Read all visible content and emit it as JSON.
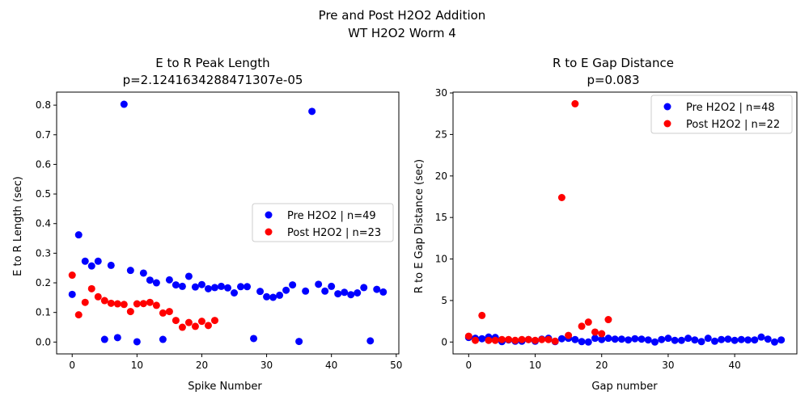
{
  "figure": {
    "suptitle_line1": "Pre and Post H2O2 Addition",
    "suptitle_line2": "WT H2O2 Worm 4"
  },
  "colors": {
    "pre": "#0000ff",
    "post": "#ff0000"
  },
  "chart_data": [
    {
      "type": "scatter",
      "title_line1": "E to R Peak Length",
      "title_line2": "p=2.1241634288471307e-05",
      "xlabel": "Spike Number",
      "ylabel": "E to R Length (sec)",
      "xlim": [
        -2.4,
        50.4
      ],
      "ylim": [
        -0.04,
        0.844
      ],
      "xticks": [
        0,
        10,
        20,
        30,
        40,
        50
      ],
      "yticks": [
        0.0,
        0.1,
        0.2,
        0.3,
        0.4,
        0.5,
        0.6,
        0.7,
        0.8
      ],
      "legend_loc": "center-right",
      "series": [
        {
          "name": "Pre H2O2 | n=49",
          "color": "#0000ff",
          "x": [
            0,
            1,
            2,
            3,
            4,
            5,
            6,
            7,
            8,
            9,
            10,
            11,
            12,
            13,
            14,
            15,
            16,
            17,
            18,
            19,
            20,
            21,
            22,
            23,
            24,
            25,
            26,
            27,
            28,
            29,
            30,
            31,
            32,
            33,
            34,
            35,
            36,
            37,
            38,
            39,
            40,
            41,
            42,
            43,
            44,
            45,
            46,
            47,
            48
          ],
          "y": [
            0.161,
            0.362,
            0.273,
            0.257,
            0.273,
            0.009,
            0.259,
            0.015,
            0.803,
            0.242,
            0.001,
            0.233,
            0.209,
            0.2,
            0.009,
            0.21,
            0.193,
            0.188,
            0.222,
            0.186,
            0.194,
            0.18,
            0.184,
            0.188,
            0.183,
            0.166,
            0.187,
            0.187,
            0.012,
            0.171,
            0.153,
            0.151,
            0.158,
            0.175,
            0.193,
            0.002,
            0.172,
            0.779,
            0.195,
            0.172,
            0.188,
            0.163,
            0.168,
            0.16,
            0.166,
            0.184,
            0.004,
            0.178,
            0.169
          ]
        },
        {
          "name": "Post H2O2 | n=23",
          "color": "#ff0000",
          "x": [
            0,
            1,
            2,
            3,
            4,
            5,
            6,
            7,
            8,
            9,
            10,
            11,
            12,
            13,
            14,
            15,
            16,
            17,
            18,
            19,
            20,
            21,
            22
          ],
          "y": [
            0.226,
            0.092,
            0.134,
            0.18,
            0.153,
            0.14,
            0.131,
            0.129,
            0.127,
            0.103,
            0.129,
            0.13,
            0.134,
            0.124,
            0.098,
            0.103,
            0.073,
            0.05,
            0.066,
            0.053,
            0.07,
            0.056,
            0.073
          ]
        }
      ]
    },
    {
      "type": "scatter",
      "title_line1": "R to E Gap Distance",
      "title_line2": "p=0.083",
      "xlabel": "Gap number",
      "ylabel": "R to E Gap Distance (sec)",
      "xlim": [
        -2.35,
        49.35
      ],
      "ylim": [
        -1.43,
        30.1
      ],
      "xticks": [
        0,
        10,
        20,
        30,
        40
      ],
      "yticks": [
        0,
        5,
        10,
        15,
        20,
        25,
        30
      ],
      "legend_loc": "upper-right",
      "series": [
        {
          "name": "Pre H2O2 | n=48",
          "color": "#0000ff",
          "x": [
            0,
            1,
            2,
            3,
            4,
            5,
            6,
            7,
            8,
            9,
            10,
            11,
            12,
            13,
            14,
            15,
            16,
            17,
            18,
            19,
            20,
            21,
            22,
            23,
            24,
            25,
            26,
            27,
            28,
            29,
            30,
            31,
            32,
            33,
            34,
            35,
            36,
            37,
            38,
            39,
            40,
            41,
            42,
            43,
            44,
            45,
            46,
            47
          ],
          "y": [
            0.55,
            0.45,
            0.4,
            0.6,
            0.55,
            0.05,
            0.25,
            0.1,
            0.1,
            0.3,
            0.1,
            0.35,
            0.45,
            0.05,
            0.4,
            0.45,
            0.3,
            0.05,
            0.0,
            0.45,
            0.3,
            0.45,
            0.35,
            0.35,
            0.25,
            0.4,
            0.35,
            0.25,
            0.0,
            0.3,
            0.45,
            0.2,
            0.2,
            0.45,
            0.25,
            0.05,
            0.45,
            0.1,
            0.3,
            0.35,
            0.2,
            0.3,
            0.25,
            0.25,
            0.6,
            0.35,
            0.0,
            0.25
          ]
        },
        {
          "name": "Post H2O2 | n=22",
          "color": "#ff0000",
          "x": [
            0,
            1,
            2,
            3,
            4,
            5,
            6,
            7,
            8,
            9,
            10,
            11,
            12,
            13,
            14,
            15,
            16,
            17,
            18,
            19,
            20,
            21
          ],
          "y": [
            0.7,
            0.2,
            3.2,
            0.2,
            0.2,
            0.3,
            0.3,
            0.2,
            0.3,
            0.3,
            0.2,
            0.3,
            0.3,
            0.1,
            17.4,
            0.8,
            28.7,
            1.9,
            2.4,
            1.2,
            1.0,
            2.7
          ]
        }
      ]
    }
  ]
}
